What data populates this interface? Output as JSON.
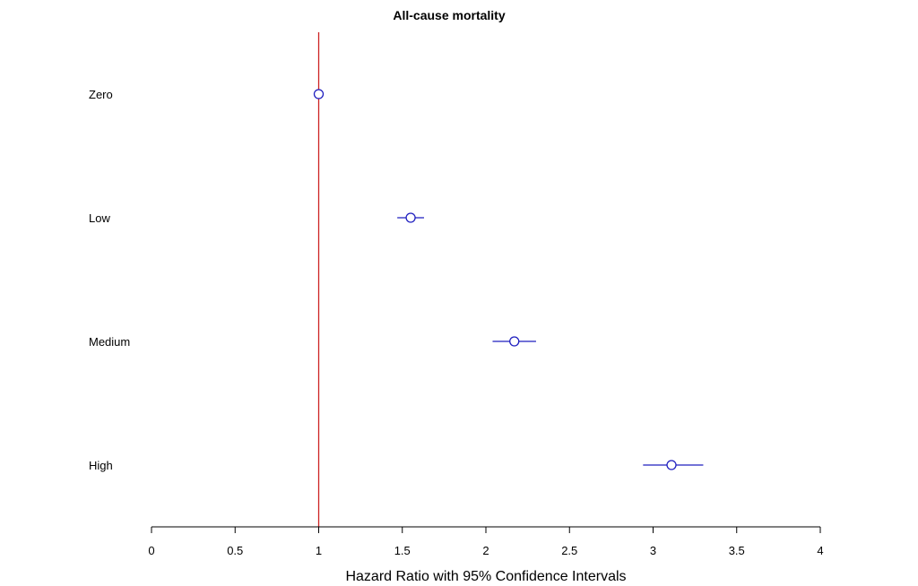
{
  "chart_data": {
    "type": "scatter",
    "title": "All-cause mortality",
    "xlabel": "Hazard Ratio with 95% Confidence Intervals",
    "ylabel": "",
    "xlim": [
      0,
      4
    ],
    "xticks": [
      "0",
      "0.5",
      "1",
      "1.5",
      "2",
      "2.5",
      "3",
      "3.5",
      "4"
    ],
    "reference_line": 1,
    "grid": false,
    "categories": [
      "Zero",
      "Low",
      "Medium",
      "High"
    ],
    "series": [
      {
        "values": [
          1.0,
          1.55,
          2.17,
          3.11
        ],
        "ci_low": [
          1.0,
          1.47,
          2.04,
          2.94
        ],
        "ci_high": [
          1.0,
          1.63,
          2.3,
          3.3
        ]
      }
    ],
    "colors": {
      "points": "#1f1fbf",
      "reference_line": "#cc2222",
      "axis": "#000000"
    }
  }
}
